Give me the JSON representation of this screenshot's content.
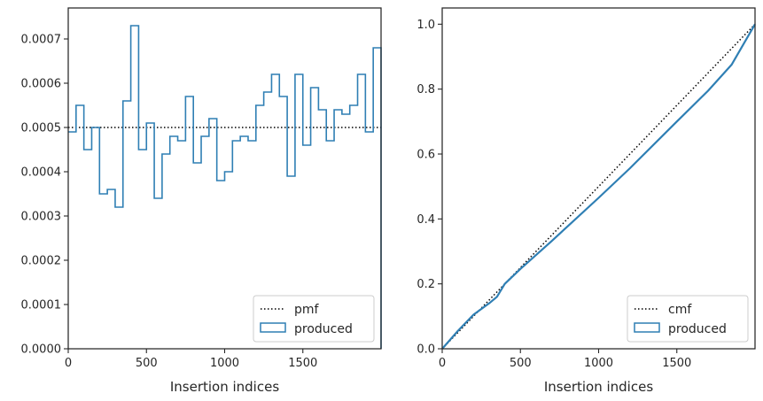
{
  "colors": {
    "produced": "#2f7fb4",
    "reference": "#000000",
    "axes": "#262626",
    "legend_border": "#cccccc"
  },
  "chart_data": [
    {
      "type": "step",
      "xlabel": "Insertion indices",
      "ylabel": "",
      "xlim": [
        0,
        2000
      ],
      "ylim": [
        0,
        0.00077
      ],
      "xticks": [
        0,
        500,
        1000,
        1500
      ],
      "xtick_labels": [
        "0",
        "500",
        "1000",
        "1500"
      ],
      "yticks": [
        0,
        0.0001,
        0.0002,
        0.0003,
        0.0004,
        0.0005,
        0.0006,
        0.0007
      ],
      "ytick_labels": [
        "0.0000",
        "0.0001",
        "0.0002",
        "0.0003",
        "0.0004",
        "0.0005",
        "0.0006",
        "0.0007"
      ],
      "grid": false,
      "legend": {
        "position": "lower-right",
        "entries": [
          "pmf",
          "produced"
        ]
      },
      "series": [
        {
          "name": "pmf",
          "style": "dotted",
          "x": [
            0,
            2000
          ],
          "y": [
            0.0005,
            0.0005
          ]
        },
        {
          "name": "produced",
          "style": "step-histogram",
          "bin_width": 50,
          "x_start": 0,
          "values": [
            0.00049,
            0.00055,
            0.00045,
            0.0005,
            0.00035,
            0.00036,
            0.00032,
            0.00056,
            0.00073,
            0.00045,
            0.00051,
            0.00034,
            0.00044,
            0.00048,
            0.00047,
            0.00057,
            0.00042,
            0.00048,
            0.00052,
            0.00038,
            0.0004,
            0.00047,
            0.00048,
            0.00047,
            0.00055,
            0.00058,
            0.00062,
            0.00057,
            0.00039,
            0.00062,
            0.00046,
            0.00059,
            0.00054,
            0.00047,
            0.00054,
            0.00053,
            0.00055,
            0.00062,
            0.00049,
            0.00068
          ]
        }
      ]
    },
    {
      "type": "line",
      "xlabel": "Insertion indices",
      "ylabel": "",
      "xlim": [
        0,
        2000
      ],
      "ylim": [
        0,
        1.05
      ],
      "xticks": [
        0,
        500,
        1000,
        1500
      ],
      "xtick_labels": [
        "0",
        "500",
        "1000",
        "1500"
      ],
      "yticks": [
        0,
        0.2,
        0.4,
        0.6,
        0.8,
        1.0
      ],
      "ytick_labels": [
        "0.0",
        "0.2",
        "0.4",
        "0.6",
        "0.8",
        "1.0"
      ],
      "grid": false,
      "legend": {
        "position": "lower-right",
        "entries": [
          "cmf",
          "produced"
        ]
      },
      "series": [
        {
          "name": "cmf",
          "style": "dotted",
          "x": [
            0,
            2000
          ],
          "y": [
            0,
            1.0
          ]
        },
        {
          "name": "produced",
          "style": "solid",
          "x": [
            0,
            100,
            200,
            300,
            350,
            400,
            500,
            700,
            1000,
            1200,
            1500,
            1700,
            1850,
            2000
          ],
          "y": [
            0,
            0.055,
            0.105,
            0.14,
            0.16,
            0.2,
            0.246,
            0.332,
            0.465,
            0.556,
            0.7,
            0.795,
            0.875,
            1.0
          ]
        }
      ]
    }
  ]
}
